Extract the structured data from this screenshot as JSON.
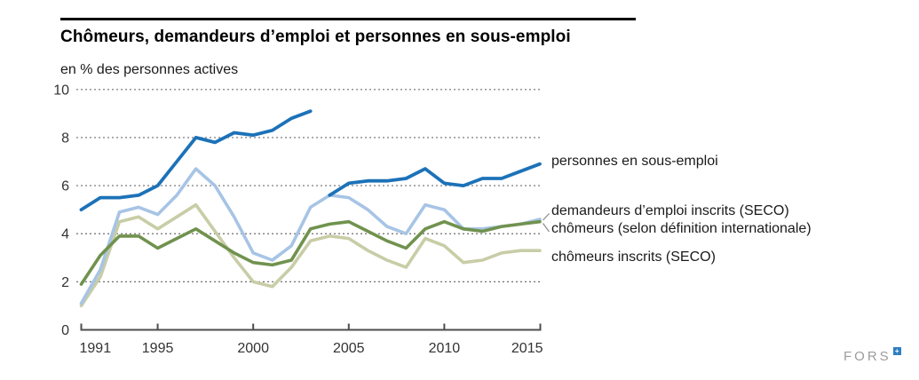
{
  "header": {
    "title": "Chômeurs, demandeurs d’emploi et personnes en sous-emploi",
    "subtitle": "en % des personnes actives"
  },
  "footer": {
    "logo_text": "FORS",
    "logo_mark": "+"
  },
  "chart_data": {
    "type": "line",
    "title": "Chômeurs, demandeurs d’emploi et personnes en sous-emploi",
    "ylabel": "en % des personnes actives",
    "x_ticks": [
      "1991",
      "1995",
      "2000",
      "2005",
      "2010",
      "2015"
    ],
    "y_ticks": [
      0,
      2,
      4,
      6,
      8,
      10
    ],
    "x_range": [
      1991,
      2015
    ],
    "ylim": [
      0,
      10
    ],
    "grid": "horizontal dashed",
    "legend_position": "right of lines",
    "axis_color": "#4d4d4d",
    "grid_color": "#6e6e6e",
    "series": [
      {
        "name": "personnes en sous-emploi",
        "color": "#1c72b8",
        "stroke_width": 3.8,
        "segments": [
          {
            "start_year": 1991,
            "values": [
              5.0,
              5.5,
              5.5,
              5.6,
              6.0,
              7.0,
              8.0,
              7.8,
              8.2,
              8.1,
              8.3,
              8.8,
              9.1
            ]
          },
          {
            "start_year": 2004,
            "values": [
              5.6,
              6.1,
              6.2,
              6.2,
              6.3,
              6.7,
              6.1,
              6.0,
              6.3,
              6.3,
              6.6,
              6.9
            ]
          }
        ]
      },
      {
        "name": "demandeurs d’emploi inscrits (SECO)",
        "color": "#a7c4e5",
        "stroke_width": 3.6,
        "segments": [
          {
            "start_year": 1991,
            "values": [
              1.1,
              2.5,
              4.9,
              5.1,
              4.8,
              5.6,
              6.7,
              6.0,
              4.7,
              3.2,
              2.9,
              3.5,
              5.1,
              5.6,
              5.5,
              5.0,
              4.3,
              4.0,
              5.2,
              5.0,
              4.2,
              4.2,
              4.3,
              4.4,
              4.6
            ]
          }
        ]
      },
      {
        "name": "chômeurs (selon définition internationale)",
        "color": "#70924e",
        "stroke_width": 3.6,
        "segments": [
          {
            "start_year": 1991,
            "values": [
              1.9,
              3.1,
              3.9,
              3.9,
              3.4,
              3.8,
              4.2,
              3.7,
              3.2,
              2.8,
              2.7,
              2.9,
              4.2,
              4.4,
              4.5,
              4.1,
              3.7,
              3.4,
              4.2,
              4.5,
              4.2,
              4.1,
              4.3,
              4.4,
              4.5
            ]
          }
        ]
      },
      {
        "name": "chômeurs inscrits (SECO)",
        "color": "#c8cda6",
        "stroke_width": 3.6,
        "segments": [
          {
            "start_year": 1991,
            "values": [
              1.0,
              2.2,
              4.5,
              4.7,
              4.2,
              4.7,
              5.2,
              4.1,
              3.0,
              2.0,
              1.8,
              2.6,
              3.7,
              3.9,
              3.8,
              3.3,
              2.9,
              2.6,
              3.8,
              3.5,
              2.8,
              2.9,
              3.2,
              3.3,
              3.3
            ]
          }
        ]
      }
    ]
  }
}
